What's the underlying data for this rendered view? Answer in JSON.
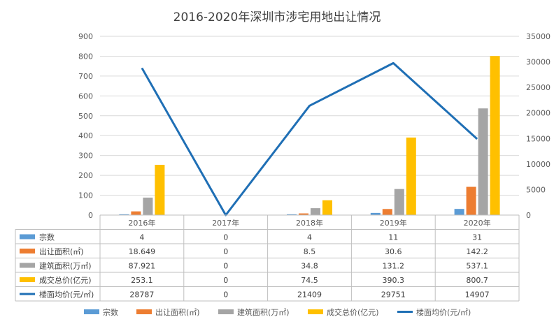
{
  "chart_data": {
    "type": "bar",
    "title": "2016-2020年深圳市涉宅用地出让情况",
    "categories": [
      "2016年",
      "2017年",
      "2018年",
      "2019年",
      "2020年"
    ],
    "left_axis": {
      "min": 0,
      "max": 900,
      "step": 100,
      "ticks": [
        "0",
        "100",
        "200",
        "300",
        "400",
        "500",
        "600",
        "700",
        "800",
        "900"
      ]
    },
    "right_axis": {
      "min": 0,
      "max": 35000,
      "step": 5000,
      "ticks": [
        "0",
        "5000",
        "10000",
        "15000",
        "20000",
        "25000",
        "30000",
        "35000"
      ]
    },
    "series": [
      {
        "name": "宗数",
        "type": "bar",
        "axis": "left",
        "color": "#5B9BD5",
        "values": [
          4,
          0,
          4,
          11,
          31
        ],
        "labels": [
          "4",
          "0",
          "4",
          "11",
          "31"
        ]
      },
      {
        "name": "出让面积(㎡)",
        "type": "bar",
        "axis": "left",
        "color": "#ED7D31",
        "values": [
          18.649,
          0,
          8.5,
          30.6,
          142.2
        ],
        "labels": [
          "18.649",
          "0",
          "8.5",
          "30.6",
          "142.2"
        ]
      },
      {
        "name": "建筑面积(万㎡)",
        "type": "bar",
        "axis": "left",
        "color": "#A5A5A5",
        "values": [
          87.921,
          0,
          34.8,
          131.2,
          537.1
        ],
        "labels": [
          "87.921",
          "0",
          "34.8",
          "131.2",
          "537.1"
        ]
      },
      {
        "name": "成交总价(亿元)",
        "type": "bar",
        "axis": "left",
        "color": "#FFC000",
        "values": [
          253.1,
          0,
          74.5,
          390.3,
          800.7
        ],
        "labels": [
          "253.1",
          "0",
          "74.5",
          "390.3",
          "800.7"
        ]
      },
      {
        "name": "楼面均价(元/㎡)",
        "type": "line",
        "axis": "right",
        "color": "#1F6FB5",
        "values": [
          28787,
          0,
          21409,
          29751,
          14907
        ],
        "labels": [
          "28787",
          "0",
          "21409",
          "29751",
          "14907"
        ]
      }
    ],
    "grid": true,
    "legend_position": "bottom",
    "data_table": true
  }
}
